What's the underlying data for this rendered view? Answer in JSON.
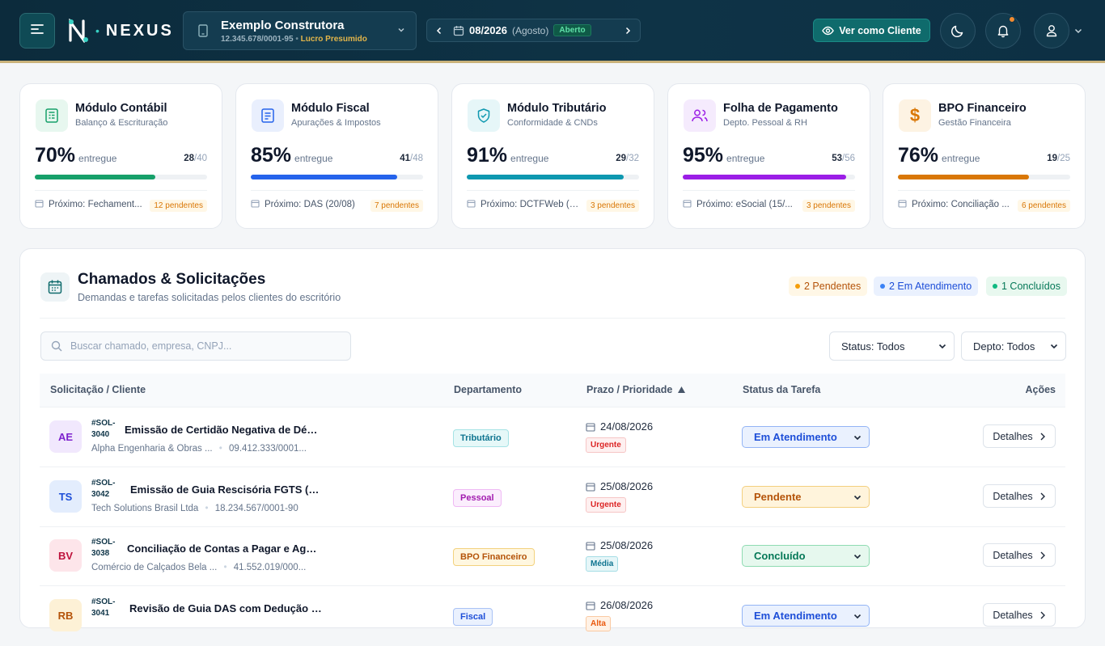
{
  "header": {
    "logo_text": "NEXUS",
    "company": {
      "name": "Exemplo Construtora",
      "cnpj": "12.345.678/0001-95",
      "regime": "Lucro Presumido"
    },
    "period": {
      "date": "08/2026",
      "month": "(Agosto)",
      "status": "Aberto"
    },
    "view_as_label": "Ver como Cliente",
    "icons": [
      "menu-icon",
      "building-icon",
      "chevron-down-icon",
      "calendar-icon",
      "chevron-left-icon",
      "chevron-right-icon",
      "eye-icon",
      "moon-icon",
      "bell-icon",
      "user-icon"
    ],
    "accent": "#c9b27a"
  },
  "modules": [
    {
      "title": "Módulo Contábil",
      "subtitle": "Balanço & Escrituração",
      "percent": "70%",
      "percent_value": 0.7,
      "suffix": "entregue",
      "done": "28",
      "total": "/40",
      "next": "Próximo: Fechament...",
      "pending": "12 pendentes",
      "color": "#16a06a",
      "icon": "ledger-icon"
    },
    {
      "title": "Módulo Fiscal",
      "subtitle": "Apurações & Impostos",
      "percent": "85%",
      "percent_value": 0.85,
      "suffix": "entregue",
      "done": "41",
      "total": "/48",
      "next": "Próximo: DAS (20/08)",
      "pending": "7 pendentes",
      "color": "#2563eb",
      "icon": "document-icon"
    },
    {
      "title": "Módulo Tributário",
      "subtitle": "Conformidade & CNDs",
      "percent": "91%",
      "percent_value": 0.91,
      "suffix": "entregue",
      "done": "29",
      "total": "/32",
      "next": "Próximo: DCTFWeb (1...",
      "pending": "3 pendentes",
      "color": "#0e98b0",
      "icon": "shield-check-icon"
    },
    {
      "title": "Folha de Pagamento",
      "subtitle": "Depto. Pessoal & RH",
      "percent": "95%",
      "percent_value": 0.95,
      "suffix": "entregue",
      "done": "53",
      "total": "/56",
      "next": "Próximo: eSocial (15/...",
      "pending": "3 pendentes",
      "color": "#9b1ee6",
      "icon": "users-icon"
    },
    {
      "title": "BPO Financeiro",
      "subtitle": "Gestão Financeira",
      "percent": "76%",
      "percent_value": 0.76,
      "suffix": "entregue",
      "done": "19",
      "total": "/25",
      "next": "Próximo: Conciliação ...",
      "pending": "6 pendentes",
      "color": "#d97706",
      "icon": "dollar-icon"
    }
  ],
  "requests": {
    "title": "Chamados & Solicitações",
    "subtitle": "Demandas e tarefas solicitadas pelos clientes do escritório",
    "summary": {
      "pending": "2 Pendentes",
      "in_progress": "2 Em Atendimento",
      "done": "1 Concluídos"
    },
    "search_placeholder": "Buscar chamado, empresa, CNPJ...",
    "filter_status": "Status: Todos",
    "filter_dept": "Depto: Todos",
    "columns": {
      "request": "Solicitação / Cliente",
      "department": "Departamento",
      "due": "Prazo / Prioridade",
      "status": "Status da Tarefa",
      "actions": "Ações"
    },
    "detail_label": "Detalhes",
    "rows": [
      {
        "initials": "AE",
        "id_a": "#SOL-",
        "id_b": "3040",
        "title": "Emissão de Certidão Negativa de Débit...",
        "client": "Alpha Engenharia & Obras ...",
        "cnpj": "09.412.333/0001...",
        "dept": "Tributário",
        "date": "24/08/2026",
        "priority": "Urgente",
        "status": "Em Atendimento"
      },
      {
        "initials": "TS",
        "id_a": "#SOL-",
        "id_b": "3042",
        "title": "Emissão de Guia Rescisória FGTS (De...",
        "client": "Tech Solutions Brasil Ltda",
        "cnpj": "18.234.567/0001-90",
        "dept": "Pessoal",
        "date": "25/08/2026",
        "priority": "Urgente",
        "status": "Pendente"
      },
      {
        "initials": "BV",
        "id_a": "#SOL-",
        "id_b": "3038",
        "title": "Conciliação de Contas a Pagar e Agen...",
        "client": "Comércio de Calçados Bela ...",
        "cnpj": "41.552.019/000...",
        "dept": "BPO Financeiro",
        "date": "25/08/2026",
        "priority": "Média",
        "status": "Concluído"
      },
      {
        "initials": "RB",
        "id_a": "#SOL-",
        "id_b": "3041",
        "title": "Revisão de Guia DAS com Dedução de...",
        "client": "",
        "cnpj": "",
        "dept": "Fiscal",
        "date": "26/08/2026",
        "priority": "Alta",
        "status": "Em Atendimento"
      }
    ]
  }
}
